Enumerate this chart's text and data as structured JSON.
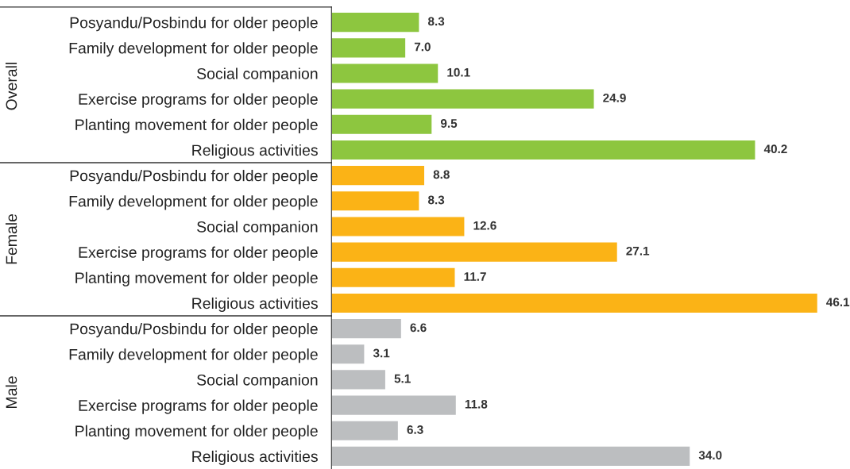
{
  "chart_data": {
    "type": "bar",
    "orientation": "horizontal",
    "grid": false,
    "categories": [
      "Posyandu/Posbindu for older people",
      "Family development for older people",
      "Social companion",
      "Exercise programs for older people",
      "Planting movement for older people",
      "Religious activities",
      "Posyandu/Posbindu for older people",
      "Family development for older people",
      "Social companion",
      "Exercise programs for older people",
      "Planting movement for older people",
      "Religious activities",
      "Posyandu/Posbindu for older people",
      "Family development for older people",
      "Social companion",
      "Exercise programs for older people",
      "Planting movement for older people",
      "Religious activities"
    ],
    "annotations": [
      "Overall",
      "Female",
      "Male"
    ],
    "series": [
      {
        "color": "#8dc63f",
        "values": [
          8.3,
          7.0,
          10.1,
          24.9,
          9.5,
          40.2,
          null,
          null,
          null,
          null,
          null,
          null,
          null,
          null,
          null,
          null,
          null,
          null
        ],
        "value_labels": [
          "8.3",
          "7.0",
          "10.1",
          "24.9",
          "9.5",
          "40.2",
          null,
          null,
          null,
          null,
          null,
          null,
          null,
          null,
          null,
          null,
          null,
          null
        ]
      },
      {
        "color": "#fbb316",
        "values": [
          null,
          null,
          null,
          null,
          null,
          null,
          8.8,
          8.3,
          12.6,
          27.1,
          11.7,
          46.1,
          null,
          null,
          null,
          null,
          null,
          null
        ],
        "value_labels": [
          null,
          null,
          null,
          null,
          null,
          null,
          "8.8",
          "8.3",
          "12.6",
          "27.1",
          "11.7",
          "46.1",
          null,
          null,
          null,
          null,
          null,
          null
        ]
      },
      {
        "color": "#bcbec0",
        "values": [
          null,
          null,
          null,
          null,
          null,
          null,
          null,
          null,
          null,
          null,
          null,
          null,
          6.6,
          3.1,
          5.1,
          11.8,
          6.3,
          34.0
        ],
        "value_labels": [
          null,
          null,
          null,
          null,
          null,
          null,
          null,
          null,
          null,
          null,
          null,
          null,
          "6.6",
          "3.1",
          "5.1",
          "11.8",
          "6.3",
          "34.0"
        ]
      }
    ]
  }
}
